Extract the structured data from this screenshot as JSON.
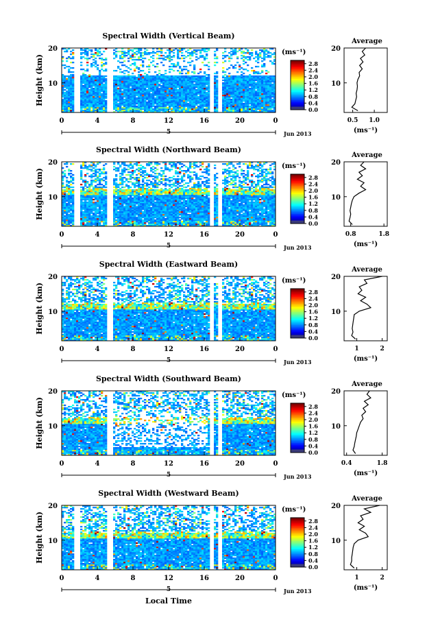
{
  "chart_data": [
    {
      "type": "heatmap",
      "title": "Spectral Width (Vertical Beam)",
      "ylabel": "Height (km)",
      "xlabel": "",
      "x_ticks": [
        "0",
        "4",
        "8",
        "12",
        "16",
        "20",
        "0"
      ],
      "y_ticks": [
        "20",
        "10"
      ],
      "date_tick": "5",
      "date_label": "Jun 2013",
      "xlim": [
        0,
        24
      ],
      "ylim": [
        1.5,
        20
      ],
      "gaps_hours": [
        [
          1.5,
          2.0
        ],
        [
          5.0,
          5.8
        ],
        [
          16.6,
          17.0
        ],
        [
          17.5,
          17.9
        ]
      ],
      "colorbar": {
        "unit": "(ms⁻¹)",
        "ticks": [
          "2.8",
          "2.4",
          "2.0",
          "1.6",
          "1.2",
          "0.8",
          "0.4",
          "0.0"
        ],
        "range": [
          0,
          3.0
        ]
      },
      "average": {
        "title": "Average",
        "xlabel": "(ms⁻¹)",
        "x_ticks": [
          "0.5",
          "1.0"
        ],
        "xlim": [
          0.3,
          1.3
        ],
        "y_ticks": [
          "20",
          "10"
        ],
        "profile_height": [
          2,
          3,
          4,
          5,
          6,
          7,
          8,
          9,
          10,
          11,
          12,
          13,
          14,
          15,
          16,
          17,
          18,
          19,
          20
        ],
        "profile_value": [
          0.62,
          0.48,
          0.55,
          0.57,
          0.59,
          0.58,
          0.6,
          0.61,
          0.6,
          0.62,
          0.66,
          0.65,
          0.72,
          0.66,
          0.74,
          0.68,
          0.78,
          0.72,
          0.8
        ]
      }
    },
    {
      "type": "heatmap",
      "title": "Spectral Width (Northward Beam)",
      "ylabel": "Height (km)",
      "xlabel": "",
      "x_ticks": [
        "0",
        "4",
        "8",
        "12",
        "16",
        "20",
        "0"
      ],
      "y_ticks": [
        "20",
        "10"
      ],
      "date_tick": "5",
      "date_label": "Jun 2013",
      "xlim": [
        0,
        24
      ],
      "ylim": [
        1.5,
        20
      ],
      "gaps_hours": [
        [
          1.5,
          2.0
        ],
        [
          5.0,
          5.8
        ],
        [
          16.6,
          17.0
        ],
        [
          17.5,
          17.9
        ]
      ],
      "colorbar": {
        "unit": "(ms⁻¹)",
        "ticks": [
          "2.8",
          "2.4",
          "2.0",
          "1.6",
          "1.2",
          "0.8",
          "0.4",
          "0.0"
        ],
        "range": [
          0,
          3.0
        ]
      },
      "average": {
        "title": "Average",
        "xlabel": "(ms⁻¹)",
        "x_ticks": [
          "0.8",
          "1.8"
        ],
        "xlim": [
          0.6,
          1.9
        ],
        "y_ticks": [
          "20",
          "10"
        ],
        "profile_height": [
          2,
          3,
          4,
          5,
          6,
          7,
          8,
          9,
          10,
          11,
          12,
          13,
          14,
          15,
          16,
          17,
          18,
          19,
          20
        ],
        "profile_value": [
          0.85,
          0.75,
          0.78,
          0.8,
          0.78,
          0.8,
          0.82,
          0.85,
          0.9,
          1.05,
          1.25,
          1.1,
          1.2,
          1.0,
          1.15,
          1.05,
          1.25,
          1.1,
          1.2
        ]
      }
    },
    {
      "type": "heatmap",
      "title": "Spectral Width (Eastward Beam)",
      "ylabel": "Height (km)",
      "xlabel": "",
      "x_ticks": [
        "0",
        "4",
        "8",
        "12",
        "16",
        "20",
        "0"
      ],
      "y_ticks": [
        "20",
        "10"
      ],
      "date_tick": "5",
      "date_label": "Jun 2013",
      "xlim": [
        0,
        24
      ],
      "ylim": [
        1.5,
        20
      ],
      "gaps_hours": [
        [
          5.0,
          5.8
        ],
        [
          16.6,
          17.0
        ],
        [
          17.5,
          17.9
        ]
      ],
      "colorbar": {
        "unit": "(ms⁻¹)",
        "ticks": [
          "2.8",
          "2.4",
          "2.0",
          "1.6",
          "1.2",
          "0.8",
          "0.4",
          "0.0"
        ],
        "range": [
          0,
          3.0
        ]
      },
      "average": {
        "title": "Average",
        "xlabel": "(ms⁻¹)",
        "x_ticks": [
          "1",
          "2"
        ],
        "xlim": [
          0.5,
          2.2
        ],
        "y_ticks": [
          "20",
          "10"
        ],
        "profile_height": [
          2,
          3,
          4,
          5,
          6,
          7,
          8,
          9,
          10,
          11,
          12,
          13,
          14,
          15,
          16,
          17,
          18,
          19,
          20
        ],
        "profile_value": [
          0.95,
          0.8,
          0.85,
          0.82,
          0.84,
          0.86,
          0.88,
          0.9,
          1.1,
          1.55,
          1.4,
          1.15,
          1.35,
          1.05,
          1.2,
          1.1,
          1.4,
          1.3,
          2.0
        ]
      }
    },
    {
      "type": "heatmap",
      "title": "Spectral Width (Southward Beam)",
      "ylabel": "Height (km)",
      "xlabel": "",
      "x_ticks": [
        "0",
        "4",
        "8",
        "12",
        "16",
        "20",
        "0"
      ],
      "y_ticks": [
        "20",
        "10"
      ],
      "date_tick": "5",
      "date_label": "Jun 2013",
      "xlim": [
        0,
        24
      ],
      "ylim": [
        1.5,
        20
      ],
      "gaps_hours": [
        [
          5.0,
          5.8
        ],
        [
          16.6,
          17.0
        ],
        [
          17.5,
          17.9
        ]
      ],
      "colorbar": {
        "unit": "(ms⁻¹)",
        "ticks": [
          "2.8",
          "2.4",
          "2.0",
          "1.6",
          "1.2",
          "0.8",
          "0.4",
          "0.0"
        ],
        "range": [
          0,
          3.0
        ]
      },
      "average": {
        "title": "Average",
        "xlabel": "(ms⁻¹)",
        "x_ticks": [
          "0.4",
          "1.8"
        ],
        "xlim": [
          0.3,
          2.0
        ],
        "y_ticks": [
          "20",
          "10"
        ],
        "profile_height": [
          2,
          3,
          4,
          5,
          6,
          7,
          8,
          9,
          10,
          11,
          12,
          13,
          14,
          15,
          16,
          17,
          18,
          19,
          20
        ],
        "profile_value": [
          0.75,
          0.65,
          0.7,
          0.72,
          0.75,
          0.78,
          0.8,
          0.85,
          0.9,
          0.95,
          1.05,
          1.0,
          1.15,
          1.05,
          1.25,
          1.1,
          1.35,
          1.2,
          1.3
        ]
      }
    },
    {
      "type": "heatmap",
      "title": "Spectral Width (Westward Beam)",
      "ylabel": "Height (km)",
      "xlabel": "Local Time",
      "x_ticks": [
        "0",
        "4",
        "8",
        "12",
        "16",
        "20",
        "0"
      ],
      "y_ticks": [
        "20",
        "10"
      ],
      "date_tick": "5",
      "date_label": "Jun 2013",
      "xlim": [
        0,
        24
      ],
      "ylim": [
        1.5,
        20
      ],
      "gaps_hours": [
        [
          1.5,
          2.0
        ],
        [
          5.0,
          5.8
        ],
        [
          16.6,
          17.0
        ],
        [
          17.5,
          17.9
        ]
      ],
      "colorbar": {
        "unit": "(ms⁻¹)",
        "ticks": [
          "2.8",
          "2.4",
          "2.0",
          "1.6",
          "1.2",
          "0.8",
          "0.4",
          "0.0"
        ],
        "range": [
          0,
          3.0
        ]
      },
      "average": {
        "title": "Average",
        "xlabel": "(ms⁻¹)",
        "x_ticks": [
          "1",
          "2"
        ],
        "xlim": [
          0.5,
          2.2
        ],
        "y_ticks": [
          "20",
          "10"
        ],
        "profile_height": [
          2,
          3,
          4,
          5,
          6,
          7,
          8,
          9,
          10,
          11,
          12,
          13,
          14,
          15,
          16,
          17,
          18,
          19,
          20
        ],
        "profile_value": [
          0.9,
          0.75,
          0.8,
          0.8,
          0.82,
          0.84,
          0.86,
          0.9,
          1.05,
          1.45,
          1.35,
          1.1,
          1.3,
          1.05,
          1.25,
          1.15,
          1.55,
          1.3,
          1.9
        ]
      }
    }
  ]
}
